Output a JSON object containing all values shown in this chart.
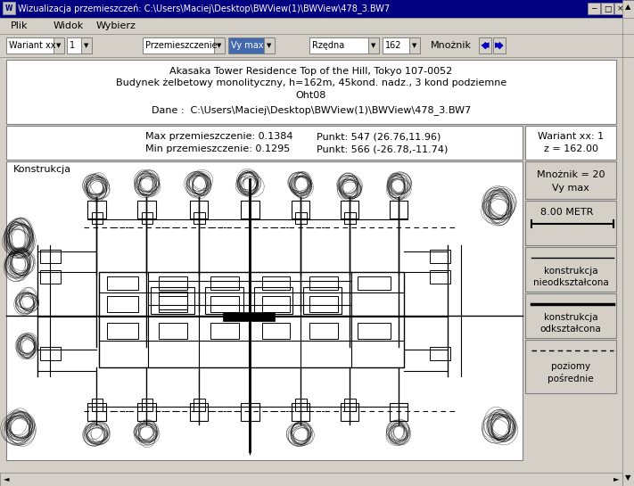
{
  "title_bar": "Wizualizacja przemieszczeń: C:\\Users\\Maciej\\Desktop\\BWView(1)\\BWView\\478_3.BW7",
  "menu_items": [
    "Plik",
    "Widok",
    "Wybierz"
  ],
  "info_line1": "Akasaka Tower Residence Top of the Hill, Tokyo 107-0052",
  "info_line2": "Budynek żelbetowy monolityczny, h=162m, 45kond. nadz., 3 kond podziemne",
  "info_line3": "Oht08",
  "info_line4": "Dane :  C:\\Users\\Maciej\\Desktop\\BWView(1)\\BWView\\478_3.BW7",
  "max_label": "Max przemieszczenie: 0.1384",
  "max_point": "Punkt: 547 (26.76,11.96)",
  "min_label": "Min przemieszczenie: 0.1295",
  "min_point": "Punkt: 566 (-26.78,-11.74)",
  "right_top1": "Wariant xx: 1",
  "right_top2": "z = 162.00",
  "right_mid1": "Mnożnik = 20",
  "right_mid2": "Vy max",
  "right_scale": "8.00 METR",
  "legend1a": "konstrukcja",
  "legend1b": "nieodkształcona",
  "legend2a": "konstrukcja",
  "legend2b": "odkształcona",
  "legend3a": "poziomy",
  "legend3b": "pośrednie",
  "konstrukja_label": "Konstrukcja",
  "bg_color": "#d4d0c8",
  "title_bar_color": "#000080"
}
